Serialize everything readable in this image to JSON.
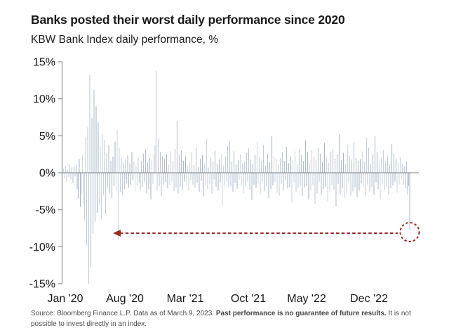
{
  "header": {
    "title": "Banks posted their worst daily performance since 2020",
    "subtitle": "KBW Bank Index daily performance, %"
  },
  "footer": {
    "source_prefix": "Source: Bloomberg Finance L.P. Data as of March 9, 2023. ",
    "source_bold": "Past performance is no guarantee of future results.",
    "source_suffix": " It is not possible to invest directly in an index."
  },
  "chart_data": {
    "type": "bar",
    "title": "Banks posted their worst daily performance since 2020",
    "subtitle": "KBW Bank Index daily performance, %",
    "units": "%",
    "x_ticks": [
      "Jan '20",
      "Aug '20",
      "Mar '21",
      "Oct '21",
      "May '22",
      "Dec '22"
    ],
    "y_ticks": [
      "15%",
      "10%",
      "5%",
      "0%",
      "-5%",
      "-10%",
      "-15%"
    ],
    "ylim": [
      -15,
      15
    ],
    "grid": "off",
    "legend": "none",
    "annotations": {
      "highlight_circle_value": -7.7,
      "arrow_level": -8,
      "arrow_direction": "left",
      "note": "dashed red circle around final bar (March 9, 2023) with dashed arrow pointing back toward 2020 lows"
    },
    "colors": {
      "bars": "#9fb0c4",
      "zero_line": "#77818e",
      "axis": "#8b9299",
      "annotation": "#9e2b26",
      "text": "#191919"
    },
    "series": [
      {
        "name": "KBW Bank Index daily performance",
        "values": [
          0.5,
          -0.7,
          0.9,
          -1.2,
          0.4,
          -0.6,
          1.1,
          -0.9,
          0.7,
          -1.4,
          0.8,
          -0.5,
          1.0,
          -2.2,
          -3.5,
          1.8,
          -4.6,
          -3.0,
          2.4,
          -4.2,
          -6.5,
          4.8,
          -9.8,
          6.2,
          -15.0,
          13.2,
          -12.8,
          7.4,
          -8.2,
          11.2,
          -6.6,
          9.0,
          -5.4,
          6.8,
          -4.4,
          3.6,
          -6.2,
          5.2,
          -3.0,
          4.4,
          -5.6,
          2.6,
          -2.0,
          3.8,
          -2.8,
          1.6,
          -3.4,
          2.2,
          -1.8,
          4.2,
          -2.4,
          5.8,
          -9.0,
          3.4,
          -2.6,
          2.0,
          -3.0,
          1.4,
          -2.2,
          1.8,
          -1.4,
          2.4,
          -2.0,
          1.2,
          -1.6,
          2.8,
          -1.0,
          1.5,
          -2.6,
          0.9,
          -1.8,
          2.1,
          -1.3,
          -2.4,
          1.6,
          -1.9,
          2.6,
          -1.2,
          3.2,
          -2.8,
          1.4,
          -2.2,
          2.0,
          -3.6,
          1.8,
          -1.5,
          2.4,
          3.8,
          13.8,
          -2.4,
          4.6,
          -1.8,
          2.8,
          -3.2,
          2.2,
          -1.6,
          1.9,
          -1.3,
          2.5,
          -2.1,
          1.1,
          -1.7,
          2.9,
          -1.1,
          1.6,
          -2.5,
          3.2,
          -2.0,
          7.0,
          -2.8,
          2.4,
          -1.9,
          3.0,
          -2.3,
          1.6,
          -1.2,
          2.2,
          -1.8,
          0.9,
          -2.4,
          1.4,
          -1.0,
          2.8,
          -1.6,
          1.1,
          -2.0,
          3.4,
          -1.4,
          0.8,
          -2.6,
          1.9,
          -1.1,
          2.4,
          -3.2,
          1.3,
          -1.7,
          4.6,
          -2.2,
          0.7,
          -1.5,
          2.0,
          -2.8,
          1.6,
          -0.9,
          3.0,
          -1.9,
          1.2,
          -2.4,
          1.8,
          -1.3,
          2.6,
          -4.4,
          1.0,
          -1.6,
          2.2,
          -1.2,
          3.6,
          -2.0,
          4.2,
          -1.8,
          1.5,
          -2.6,
          2.9,
          -1.4,
          1.1,
          -2.2,
          1.7,
          -1.0,
          2.5,
          -1.8,
          1.3,
          -2.8,
          1.5,
          -1.9,
          2.7,
          -1.1,
          3.3,
          -2.3,
          1.8,
          -3.7,
          1.2,
          -1.6,
          2.4,
          -2.0,
          4.2,
          -1.4,
          2.1,
          -2.9,
          1.6,
          -1.2,
          3.8,
          -2.5,
          1.0,
          -1.8,
          2.6,
          -3.4,
          1.4,
          -2.2,
          5.0,
          -1.7,
          2.3,
          -1.3,
          1.9,
          -2.7,
          1.1,
          -3.1,
          2.0,
          -1.5,
          2.8,
          -2.4,
          1.6,
          -1.0,
          3.5,
          -2.1,
          1.3,
          -1.9,
          2.2,
          -4.0,
          1.7,
          -1.4,
          2.9,
          -2.6,
          1.2,
          -2.0,
          3.1,
          -1.8,
          2.4,
          -3.2,
          1.6,
          -2.0,
          4.4,
          -1.8,
          2.8,
          -3.6,
          1.4,
          -2.4,
          3.0,
          -1.6,
          2.2,
          -4.2,
          1.8,
          -2.8,
          3.4,
          -1.2,
          2.6,
          -3.0,
          1.5,
          -2.2,
          4.0,
          -1.9,
          2.1,
          -3.8,
          1.3,
          -2.6,
          2.9,
          -1.7,
          3.2,
          -2.3,
          1.9,
          -4.6,
          2.5,
          -1.5,
          5.2,
          -2.9,
          1.7,
          -2.1,
          2.7,
          -3.4,
          1.2,
          -2.7,
          3.8,
          -1.4,
          2.3,
          -3.1,
          1.8,
          -2.5,
          4.1,
          -1.9,
          2.0,
          -3.3,
          1.6,
          -2.4,
          1.8,
          -1.4,
          2.9,
          -2.0,
          1.5,
          -3.2,
          4.8,
          -1.6,
          3.4,
          -2.6,
          1.2,
          -1.9,
          2.5,
          -3.0,
          5.0,
          -1.3,
          2.8,
          -2.2,
          1.4,
          -3.6,
          2.0,
          -1.5,
          3.1,
          -2.4,
          1.6,
          -1.8,
          2.3,
          -2.9,
          1.1,
          -2.1,
          3.9,
          -1.7,
          2.6,
          -1.2,
          1.9,
          -2.7,
          1.3,
          -1.6,
          2.1,
          -0.8,
          1.2,
          -1.6,
          0.9,
          -2.1,
          1.5,
          -3.0,
          -1.8,
          -7.7
        ]
      }
    ]
  }
}
